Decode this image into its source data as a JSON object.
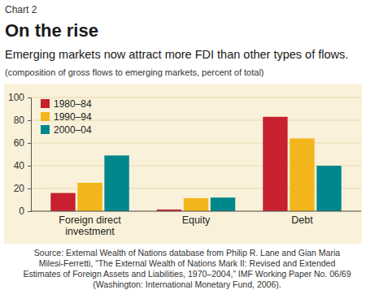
{
  "chart_data": {
    "type": "bar",
    "label": "Chart 2",
    "title": "On the rise",
    "subtitle": "Emerging markets now attract more FDI than other types of flows.",
    "y_label": "(composition of gross flows to emerging markets, percent of total)",
    "note": "Source: External Wealth of Nations database from Philip R. Lane and Gian Maria Milesi-Ferretti, “The External Wealth of Nations Mark II: Revised and Extended Estimates of Foreign Assets and Liabilities, 1970–2004,” IMF Working Paper No. 06/69 (Washington: International Monetary Fund, 2006).",
    "categories": [
      "Foreign direct investment",
      "Equity",
      "Debt"
    ],
    "series": [
      {
        "name": "1980–84",
        "color": "#c8202f",
        "values": [
          16,
          1.5,
          83
        ]
      },
      {
        "name": "1990–94",
        "color": "#f2b61c",
        "values": [
          25,
          11.5,
          64
        ]
      },
      {
        "name": "2000–04",
        "color": "#00878c",
        "values": [
          49,
          12,
          40
        ]
      }
    ],
    "ylim": [
      0,
      100
    ],
    "yticks": [
      0,
      20,
      40,
      60,
      80,
      100
    ],
    "grid": true,
    "legend": "top-left"
  }
}
